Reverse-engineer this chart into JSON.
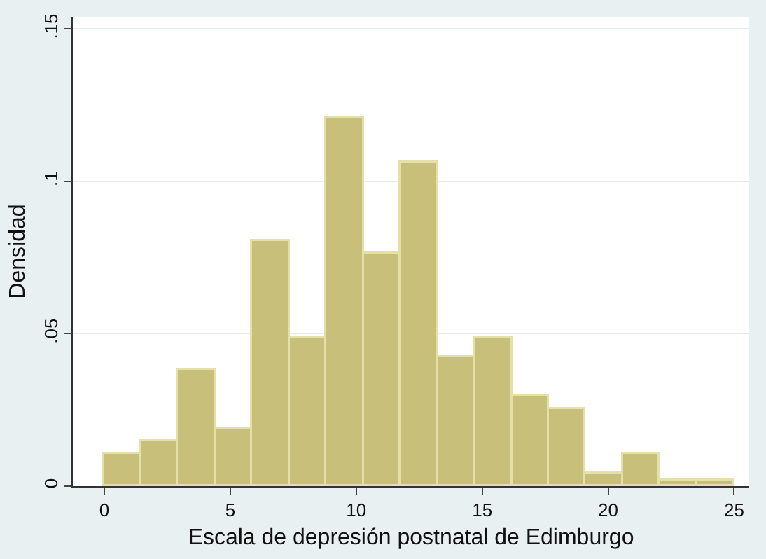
{
  "chart_data": {
    "type": "histogram",
    "xlabel": "Escala de depresión postnatal de Edimburgo",
    "ylabel": "Densidad",
    "bins": [
      0,
      1.47,
      2.94,
      4.41,
      5.88,
      7.35,
      8.82,
      10.29,
      11.76,
      13.24,
      14.71,
      16.18,
      17.65,
      19.12,
      20.59,
      22.06,
      23.53,
      25
    ],
    "values": [
      0.0104,
      0.0146,
      0.038,
      0.019,
      0.0804,
      0.0488,
      0.1208,
      0.0762,
      0.106,
      0.0422,
      0.0488,
      0.0295,
      0.0253,
      0.004,
      0.0106,
      0.0019,
      0.0019
    ],
    "color": "#c8c07a",
    "xlim": [
      -1.25,
      25.6
    ],
    "xticks": [
      0,
      5,
      10,
      15,
      20,
      25
    ],
    "ylim": [
      0,
      0.154
    ],
    "yticks": [
      {
        "value": 0,
        "label": "0"
      },
      {
        "value": 0.05,
        "label": ".05"
      },
      {
        "value": 0.1,
        "label": ".1"
      },
      {
        "value": 0.15,
        "label": ".15"
      }
    ],
    "grid": "y"
  }
}
